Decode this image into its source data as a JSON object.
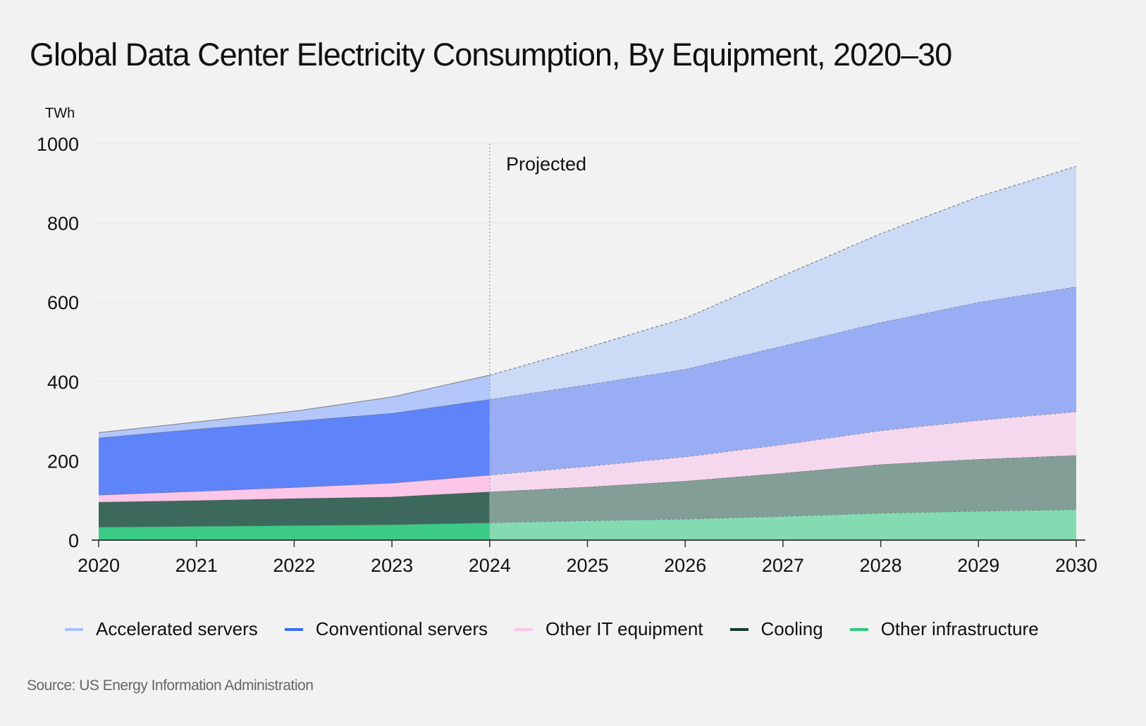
{
  "chart_data": {
    "type": "area",
    "stacked": true,
    "title": "Global Data Center Electricity Consumption, By Equipment, 2020–30",
    "ylabel": "TWh",
    "xlabel": "",
    "ylim": [
      0,
      1000
    ],
    "yticks": [
      0,
      200,
      400,
      600,
      800,
      1000
    ],
    "x": [
      2020,
      2021,
      2022,
      2023,
      2024,
      2025,
      2026,
      2027,
      2028,
      2029,
      2030
    ],
    "grid": true,
    "legend_position": "bottom",
    "annotation": {
      "label": "Projected",
      "from_x": 2024
    },
    "series": [
      {
        "name": "Other infrastructure",
        "color": "#2ecc7f",
        "fill": "#3ccb87",
        "projected_fill": "#84dbb2",
        "values": [
          33,
          35,
          37,
          39,
          44,
          49,
          53,
          60,
          68,
          73,
          77
        ]
      },
      {
        "name": "Cooling",
        "color": "#133f33",
        "fill": "#3c695c",
        "projected_fill": "#839e96",
        "values": [
          63,
          65,
          68,
          70,
          78,
          85,
          96,
          109,
          123,
          131,
          137
        ]
      },
      {
        "name": "Other IT equipment",
        "color": "#fbc6e8",
        "fill": "#fbc6e8",
        "projected_fill": "#f6d8ee",
        "values": [
          18,
          23,
          28,
          35,
          42,
          52,
          61,
          72,
          85,
          98,
          110
        ]
      },
      {
        "name": "Conventional servers",
        "color": "#3b6cf6",
        "fill": "#5f83f8",
        "projected_fill": "#98adf3",
        "values": [
          144,
          157,
          167,
          176,
          191,
          206,
          221,
          249,
          273,
          298,
          315
        ]
      },
      {
        "name": "Accelerated servers",
        "color": "#a8c0fb",
        "fill": "#b3c7fa",
        "projected_fill": "#cbdaf5",
        "values": [
          13,
          18,
          25,
          41,
          61,
          94,
          129,
          177,
          224,
          266,
          304
        ]
      }
    ],
    "legend_order": [
      "Accelerated servers",
      "Conventional servers",
      "Other IT equipment",
      "Cooling",
      "Other infrastructure"
    ]
  },
  "source": "Source: US Energy Information Administration"
}
